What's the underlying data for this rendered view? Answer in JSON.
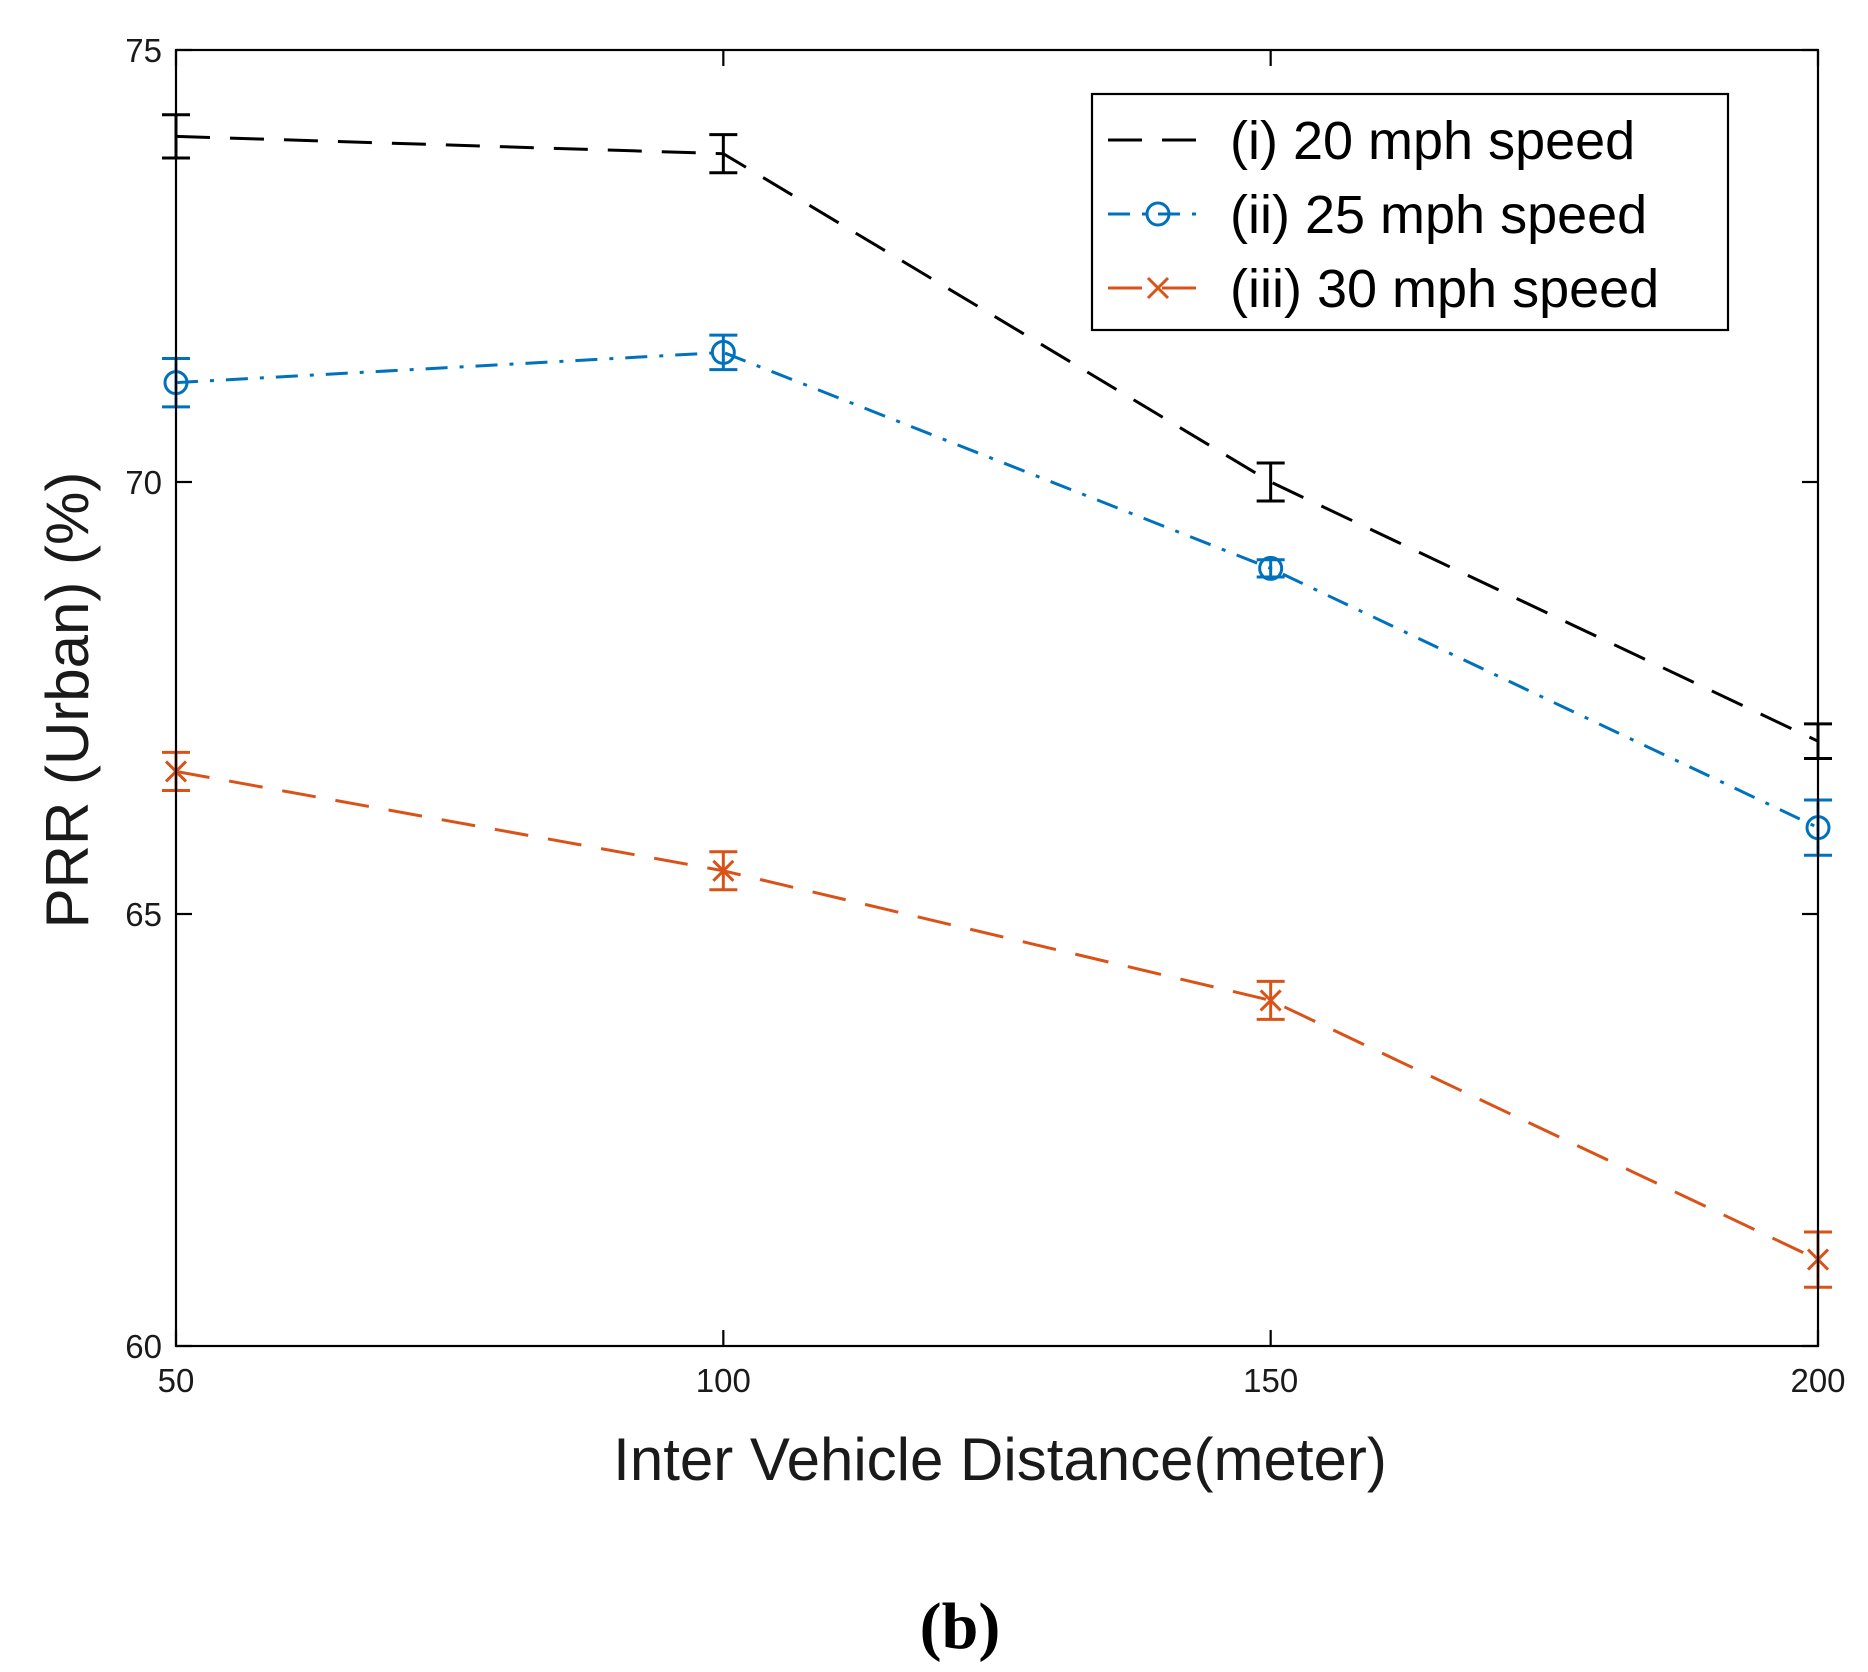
{
  "chart_data": {
    "type": "line",
    "title": "",
    "xlabel": "Inter Vehicle Distance(meter)",
    "ylabel": "PRR (Urban) (%)",
    "x": [
      50,
      100,
      150,
      200
    ],
    "xlim": [
      50,
      200
    ],
    "ylim": [
      60,
      75
    ],
    "xticks": [
      50,
      100,
      150,
      200
    ],
    "yticks": [
      60,
      65,
      70,
      75
    ],
    "grid": false,
    "legend_position": "top-right",
    "series": [
      {
        "name": "(i) 20 mph speed",
        "values": [
          74.0,
          73.8,
          70.0,
          67.0
        ],
        "errors": [
          0.25,
          0.22,
          0.22,
          0.2
        ],
        "color": "#000000",
        "line_style": "dashed",
        "marker": "none"
      },
      {
        "name": "(ii) 25 mph speed",
        "values": [
          71.15,
          71.5,
          69.0,
          66.0
        ],
        "errors": [
          0.28,
          0.2,
          0.1,
          0.32
        ],
        "color": "#0072BD",
        "line_style": "dash-dot",
        "marker": "circle"
      },
      {
        "name": "(iii) 30 mph speed",
        "values": [
          66.65,
          65.5,
          64.0,
          61.0
        ],
        "errors": [
          0.22,
          0.22,
          0.22,
          0.32
        ],
        "color": "#D95319",
        "line_style": "dashed",
        "marker": "x"
      }
    ]
  },
  "caption": "(b)"
}
